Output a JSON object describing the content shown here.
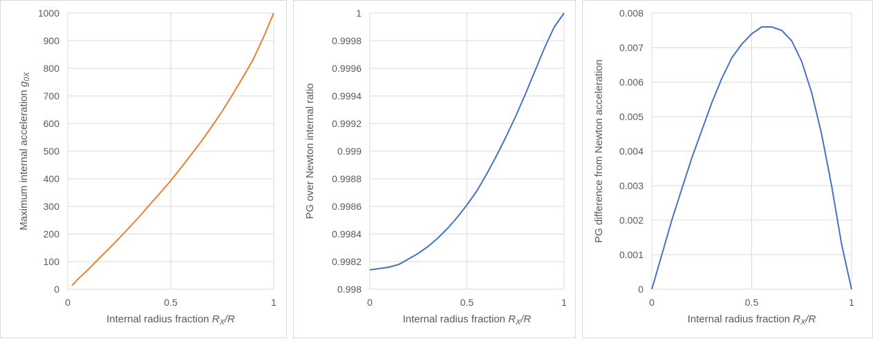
{
  "chart_data": [
    {
      "type": "line",
      "xlabel_prefix": "Internal radius fraction ",
      "xlabel_var": "R",
      "xlabel_sub": "X",
      "xlabel_suffix": "/R",
      "ylabel_prefix": "Maximum internal acceleration ",
      "ylabel_var": "g",
      "ylabel_sub": "0X",
      "x_ticks": [
        "0",
        "0.5",
        "1"
      ],
      "y_ticks": [
        "0",
        "100",
        "200",
        "300",
        "400",
        "500",
        "600",
        "700",
        "800",
        "900",
        "1000"
      ],
      "xlim": [
        0,
        1
      ],
      "ylim": [
        0,
        1000
      ],
      "grid": true,
      "color": "#ED7D31",
      "series": [
        {
          "x": [
            0.02,
            0.05,
            0.1,
            0.15,
            0.2,
            0.25,
            0.3,
            0.35,
            0.4,
            0.45,
            0.5,
            0.55,
            0.6,
            0.65,
            0.7,
            0.75,
            0.8,
            0.85,
            0.9,
            0.95,
            1.0
          ],
          "y": [
            13,
            37,
            72,
            110,
            147,
            185,
            225,
            265,
            308,
            350,
            393,
            440,
            488,
            537,
            590,
            645,
            705,
            767,
            832,
            912,
            1000
          ]
        }
      ]
    },
    {
      "type": "line",
      "xlabel_prefix": "Internal radius fraction ",
      "xlabel_var": "R",
      "xlabel_sub": "X",
      "xlabel_suffix": "/R",
      "ylabel": "PG over Newton internal ratio",
      "x_ticks": [
        "0",
        "0.5",
        "1"
      ],
      "y_ticks": [
        "0.998",
        "0.9982",
        "0.9984",
        "0.9986",
        "0.9988",
        "0.999",
        "0.9992",
        "0.9994",
        "0.9996",
        "0.9998",
        "1"
      ],
      "xlim": [
        0,
        1
      ],
      "ylim": [
        0.998,
        1.0
      ],
      "grid": true,
      "color": "#4472C4",
      "series": [
        {
          "x": [
            0,
            0.05,
            0.1,
            0.15,
            0.2,
            0.25,
            0.3,
            0.35,
            0.4,
            0.45,
            0.5,
            0.55,
            0.6,
            0.65,
            0.7,
            0.75,
            0.8,
            0.85,
            0.9,
            0.95,
            1.0
          ],
          "y": [
            0.99814,
            0.99815,
            0.99816,
            0.99818,
            0.99822,
            0.99826,
            0.99831,
            0.99837,
            0.99844,
            0.99852,
            0.99861,
            0.99871,
            0.99883,
            0.99896,
            0.9991,
            0.99925,
            0.99941,
            0.99958,
            0.99975,
            0.9999,
            1.0
          ]
        }
      ]
    },
    {
      "type": "line",
      "xlabel_prefix": "Internal radius fraction ",
      "xlabel_var": "R",
      "xlabel_sub": "X",
      "xlabel_suffix": "/R",
      "ylabel": "PG difference from Newton acceleration",
      "x_ticks": [
        "0",
        "0.5",
        "1"
      ],
      "y_ticks": [
        "0",
        "0.001",
        "0.002",
        "0.003",
        "0.004",
        "0.005",
        "0.006",
        "0.007",
        "0.008"
      ],
      "xlim": [
        0,
        1
      ],
      "ylim": [
        0,
        0.008
      ],
      "grid": true,
      "color": "#4472C4",
      "series": [
        {
          "x": [
            0,
            0.05,
            0.1,
            0.15,
            0.2,
            0.25,
            0.3,
            0.35,
            0.4,
            0.45,
            0.5,
            0.55,
            0.6,
            0.65,
            0.7,
            0.75,
            0.8,
            0.85,
            0.9,
            0.95,
            1.0
          ],
          "y": [
            0,
            0.001,
            0.002,
            0.0029,
            0.0038,
            0.0046,
            0.0054,
            0.0061,
            0.0067,
            0.0071,
            0.0074,
            0.0076,
            0.0076,
            0.0075,
            0.0072,
            0.0066,
            0.0057,
            0.0045,
            0.003,
            0.0013,
            0
          ]
        }
      ]
    }
  ]
}
